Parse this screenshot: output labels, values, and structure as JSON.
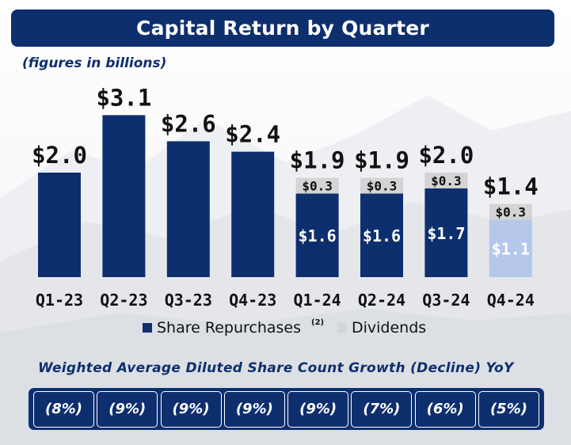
{
  "title": "Capital Return by Quarter",
  "subtitle": "(figures in billions)",
  "chart_data": {
    "type": "bar",
    "stacked": true,
    "categories": [
      "Q1-23",
      "Q2-23",
      "Q3-23",
      "Q4-23",
      "Q1-24",
      "Q2-24",
      "Q3-24",
      "Q4-24"
    ],
    "totals": [
      2.0,
      3.1,
      2.6,
      2.4,
      1.9,
      1.9,
      2.0,
      1.4
    ],
    "total_labels": [
      "$2.0",
      "$3.1",
      "$2.6",
      "$2.4",
      "$1.9",
      "$1.9",
      "$2.0",
      "$1.4"
    ],
    "series": [
      {
        "name": "Share Repurchases",
        "values": [
          2.0,
          3.1,
          2.6,
          2.4,
          1.6,
          1.6,
          1.7,
          1.1
        ],
        "labels": [
          "",
          "",
          "",
          "",
          "$1.6",
          "$1.6",
          "$1.7",
          "$1.1"
        ],
        "color": "#0e2f6e",
        "highlight_color": "#b5c8ea"
      },
      {
        "name": "Dividends",
        "values": [
          0,
          0,
          0,
          0,
          0.3,
          0.3,
          0.3,
          0.3
        ],
        "labels": [
          "",
          "",
          "",
          "",
          "$0.3",
          "$0.3",
          "$0.3",
          "$0.3"
        ],
        "color": "#d4d4d4"
      }
    ],
    "highlight_last_category": true,
    "legend": {
      "position": "bottom",
      "items": [
        {
          "label": "Share Repurchases",
          "footnote": "(2)",
          "color": "#0e2f6e"
        },
        {
          "label": "Dividends",
          "color": "#d4d4d4"
        }
      ]
    },
    "ylim": [
      0,
      3.3
    ],
    "grid": false
  },
  "share_count": {
    "header": "Weighted Average Diluted Share Count Growth (Decline) YoY",
    "values": [
      "(8%)",
      "(9%)",
      "(9%)",
      "(9%)",
      "(9%)",
      "(7%)",
      "(6%)",
      "(5%)"
    ]
  }
}
